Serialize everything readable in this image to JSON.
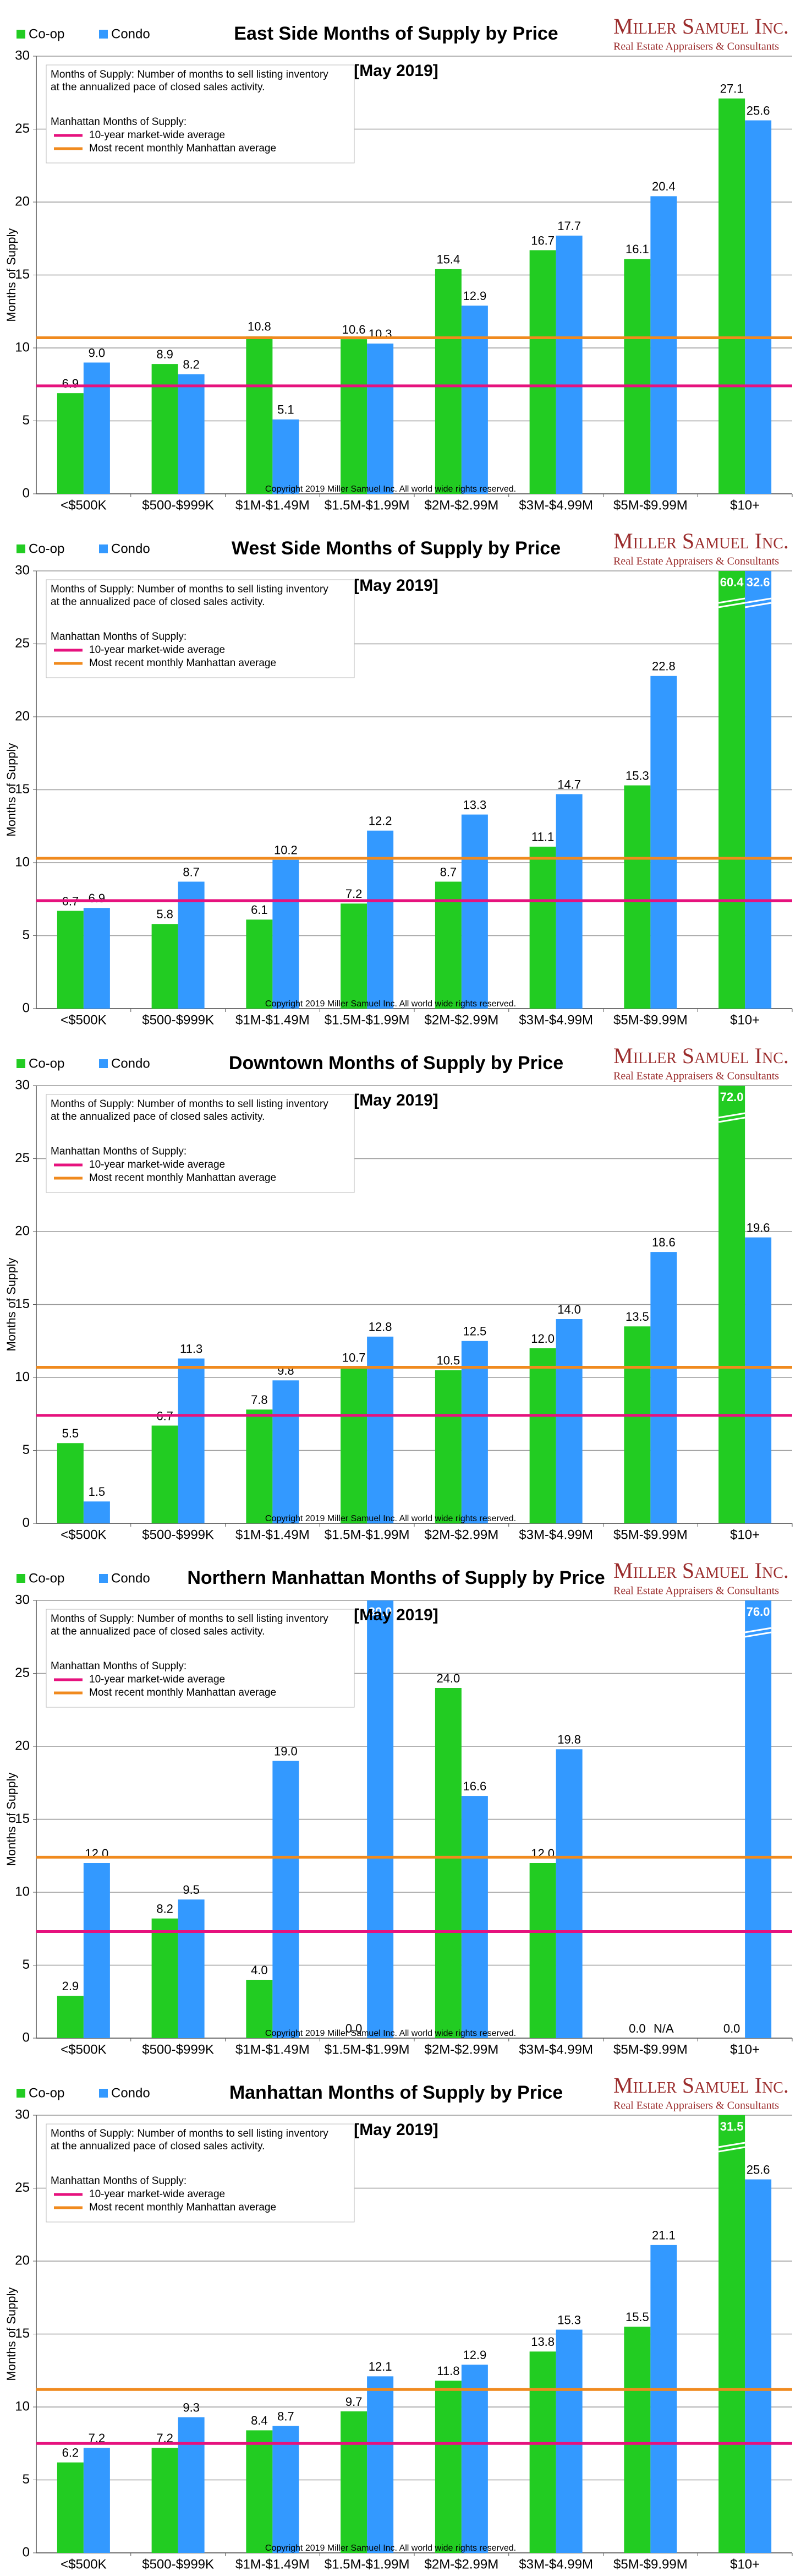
{
  "logo": {
    "name": "Miller Samuel Inc.",
    "tagline": "Real Estate Appraisers & Consultants"
  },
  "chart_data": [
    {
      "type": "bar",
      "title": "East Side Months of Supply by Price",
      "subtitle": "[May 2019]",
      "y_label": "Months of Supply",
      "note": "Months of Supply: Number of months to sell listing inventory at the annualized pace of closed sales activity.",
      "reference_title": "Manhattan Months of Supply:",
      "copyright": "Copyright 2019 Miller Samuel Inc. All world wide rights reserved.",
      "categories": [
        "<$500K",
        "$500-$999K",
        "$1M-$1.49M",
        "$1.5M-$1.99M",
        "$2M-$2.99M",
        "$3M-$4.99M",
        "$5M-$9.99M",
        "$10+"
      ],
      "series": [
        {
          "name": "Co-op",
          "color": "#22cc22",
          "values": [
            6.9,
            8.9,
            10.8,
            10.6,
            15.4,
            16.7,
            16.1,
            27.1
          ],
          "value_labels": [
            "6.9",
            "8.9",
            "10.8",
            "10.6",
            "15.4",
            "16.7",
            "16.1",
            "27.1"
          ]
        },
        {
          "name": "Condo",
          "color": "#3399ff",
          "values": [
            9.0,
            8.2,
            5.1,
            10.3,
            12.9,
            17.7,
            20.4,
            25.6
          ],
          "value_labels": [
            "9.0",
            "8.2",
            "5.1",
            "10.3",
            "12.9",
            "17.7",
            "20.4",
            "25.6"
          ]
        }
      ],
      "reference_lines": [
        {
          "name": "10-year market-wide average",
          "color": "#e6127e",
          "value": 7.4
        },
        {
          "name": "Most recent monthly Manhattan average",
          "color": "#f08a1e",
          "value": 10.7
        }
      ],
      "ylim": [
        0,
        30
      ],
      "yticks": [
        0,
        5,
        10,
        15,
        20,
        25,
        30
      ],
      "grid": true
    },
    {
      "type": "bar",
      "title": "West Side Months of Supply by Price",
      "subtitle": "[May 2019]",
      "y_label": "Months of Supply",
      "note": "Months of Supply: Number of months to sell listing inventory at the annualized pace of closed sales activity.",
      "reference_title": "Manhattan Months of Supply:",
      "copyright": "Copyright 2019 Miller Samuel Inc. All world wide rights reserved.",
      "categories": [
        "<$500K",
        "$500-$999K",
        "$1M-$1.49M",
        "$1.5M-$1.99M",
        "$2M-$2.99M",
        "$3M-$4.99M",
        "$5M-$9.99M",
        "$10+"
      ],
      "series": [
        {
          "name": "Co-op",
          "color": "#22cc22",
          "values": [
            6.7,
            5.8,
            6.1,
            7.2,
            8.7,
            11.1,
            15.3,
            60.4
          ],
          "value_labels": [
            "6.7",
            "5.8",
            "6.1",
            "7.2",
            "8.7",
            "11.1",
            "15.3",
            "60.4"
          ]
        },
        {
          "name": "Condo",
          "color": "#3399ff",
          "values": [
            6.9,
            8.7,
            10.2,
            12.2,
            13.3,
            14.7,
            22.8,
            32.6
          ],
          "value_labels": [
            "6.9",
            "8.7",
            "10.2",
            "12.2",
            "13.3",
            "14.7",
            "22.8",
            "32.6"
          ]
        }
      ],
      "reference_lines": [
        {
          "name": "10-year market-wide average",
          "color": "#e6127e",
          "value": 7.4
        },
        {
          "name": "Most recent monthly Manhattan average",
          "color": "#f08a1e",
          "value": 10.3
        }
      ],
      "ylim": [
        0,
        30
      ],
      "yticks": [
        0,
        5,
        10,
        15,
        20,
        25,
        30
      ],
      "grid": true
    },
    {
      "type": "bar",
      "title": "Downtown Months of Supply by Price",
      "subtitle": "[May 2019]",
      "y_label": "Months of Supply",
      "note": "Months of Supply: Number of months to sell listing inventory at the annualized pace of closed sales activity.",
      "reference_title": "Manhattan Months of Supply:",
      "copyright": "Copyright 2019 Miller Samuel Inc. All world wide rights reserved.",
      "categories": [
        "<$500K",
        "$500-$999K",
        "$1M-$1.49M",
        "$1.5M-$1.99M",
        "$2M-$2.99M",
        "$3M-$4.99M",
        "$5M-$9.99M",
        "$10+"
      ],
      "series": [
        {
          "name": "Co-op",
          "color": "#22cc22",
          "values": [
            5.5,
            6.7,
            7.8,
            10.7,
            10.5,
            12.0,
            13.5,
            72.0
          ],
          "value_labels": [
            "5.5",
            "6.7",
            "7.8",
            "10.7",
            "10.5",
            "12.0",
            "13.5",
            "72.0"
          ]
        },
        {
          "name": "Condo",
          "color": "#3399ff",
          "values": [
            1.5,
            11.3,
            9.8,
            12.8,
            12.5,
            14.0,
            18.6,
            19.6
          ],
          "value_labels": [
            "1.5",
            "11.3",
            "9.8",
            "12.8",
            "12.5",
            "14.0",
            "18.6",
            "19.6"
          ]
        }
      ],
      "reference_lines": [
        {
          "name": "10-year market-wide average",
          "color": "#e6127e",
          "value": 7.4
        },
        {
          "name": "Most recent monthly Manhattan average",
          "color": "#f08a1e",
          "value": 10.7
        }
      ],
      "ylim": [
        0,
        30
      ],
      "yticks": [
        0,
        5,
        10,
        15,
        20,
        25,
        30
      ],
      "grid": true
    },
    {
      "type": "bar",
      "title": "Northern Manhattan Months of Supply by Price",
      "subtitle": "[May 2019]",
      "y_label": "Months of Supply",
      "note": "Months of Supply: Number of months to sell listing inventory at the annualized pace of closed sales activity.",
      "reference_title": "Manhattan Months of Supply:",
      "copyright": "Copyright 2019 Miller Samuel Inc. All world wide rights reserved.",
      "categories": [
        "<$500K",
        "$500-$999K",
        "$1M-$1.49M",
        "$1.5M-$1.99M",
        "$2M-$2.99M",
        "$3M-$4.99M",
        "$5M-$9.99M",
        "$10+"
      ],
      "series": [
        {
          "name": "Co-op",
          "color": "#22cc22",
          "values": [
            2.9,
            8.2,
            4.0,
            0.0,
            24.0,
            12.0,
            0.0,
            0.0
          ],
          "value_labels": [
            "2.9",
            "8.2",
            "4.0",
            "0.0",
            "24.0",
            "12.0",
            "0.0",
            "0.0"
          ]
        },
        {
          "name": "Condo",
          "color": "#3399ff",
          "values": [
            12.0,
            9.5,
            19.0,
            30.0,
            16.6,
            19.8,
            null,
            76.0
          ],
          "value_labels": [
            "12.0",
            "9.5",
            "19.0",
            "30.0",
            "16.6",
            "19.8",
            "N/A",
            "76.0"
          ]
        }
      ],
      "reference_lines": [
        {
          "name": "10-year market-wide average",
          "color": "#e6127e",
          "value": 7.3
        },
        {
          "name": "Most recent monthly Manhattan average",
          "color": "#f08a1e",
          "value": 12.4
        }
      ],
      "ylim": [
        0,
        30
      ],
      "yticks": [
        0,
        5,
        10,
        15,
        20,
        25,
        30
      ],
      "grid": true
    },
    {
      "type": "bar",
      "title": "Manhattan Months of Supply by Price",
      "subtitle": "[May 2019]",
      "y_label": "Months of Supply",
      "note": "Months of Supply: Number of months to sell listing inventory at the annualized pace of closed sales activity.",
      "reference_title": "Manhattan Months of Supply:",
      "copyright": "Copyright 2019 Miller Samuel Inc. All world wide rights reserved.",
      "categories": [
        "<$500K",
        "$500-$999K",
        "$1M-$1.49M",
        "$1.5M-$1.99M",
        "$2M-$2.99M",
        "$3M-$4.99M",
        "$5M-$9.99M",
        "$10+"
      ],
      "series": [
        {
          "name": "Co-op",
          "color": "#22cc22",
          "values": [
            6.2,
            7.2,
            8.4,
            9.7,
            11.8,
            13.8,
            15.5,
            31.5
          ],
          "value_labels": [
            "6.2",
            "7.2",
            "8.4",
            "9.7",
            "11.8",
            "13.8",
            "15.5",
            "31.5"
          ]
        },
        {
          "name": "Condo",
          "color": "#3399ff",
          "values": [
            7.2,
            9.3,
            8.7,
            12.1,
            12.9,
            15.3,
            21.1,
            25.6
          ],
          "value_labels": [
            "7.2",
            "9.3",
            "8.7",
            "12.1",
            "12.9",
            "15.3",
            "21.1",
            "25.6"
          ]
        }
      ],
      "reference_lines": [
        {
          "name": "10-year market-wide average",
          "color": "#e6127e",
          "value": 7.5
        },
        {
          "name": "Most recent monthly Manhattan average",
          "color": "#f08a1e",
          "value": 11.2
        }
      ],
      "ylim": [
        0,
        30
      ],
      "yticks": [
        0,
        5,
        10,
        15,
        20,
        25,
        30
      ],
      "grid": true
    }
  ]
}
